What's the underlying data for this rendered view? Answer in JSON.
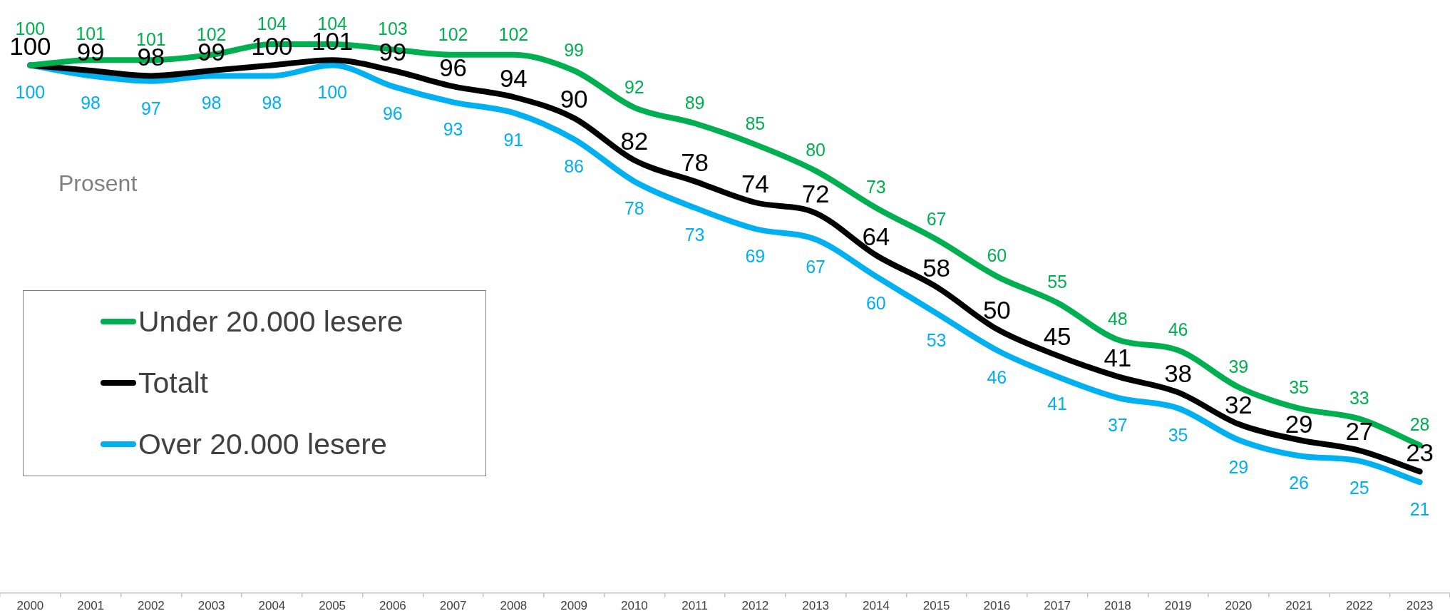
{
  "chart_data": {
    "type": "line",
    "categories": [
      "2000",
      "2001",
      "2002",
      "2003",
      "2004",
      "2005",
      "2006",
      "2007",
      "2008",
      "2009",
      "2010",
      "2011",
      "2012",
      "2013",
      "2014",
      "2015",
      "2016",
      "2017",
      "2018",
      "2019",
      "2020",
      "2021",
      "2022",
      "2023"
    ],
    "series": [
      {
        "name": "Under 20.000 lesere",
        "color": "#00b050",
        "values": [
          100,
          101,
          101,
          102,
          104,
          104,
          103,
          102,
          102,
          99,
          92,
          89,
          85,
          80,
          73,
          67,
          60,
          55,
          48,
          46,
          39,
          35,
          33,
          28
        ]
      },
      {
        "name": "Totalt",
        "color": "#000000",
        "values": [
          100,
          99,
          98,
          99,
          100,
          101,
          99,
          96,
          94,
          90,
          82,
          78,
          74,
          72,
          64,
          58,
          50,
          45,
          41,
          38,
          32,
          29,
          27,
          23
        ]
      },
      {
        "name": "Over 20.000 lesere",
        "color": "#00b0f0",
        "values": [
          100,
          98,
          97,
          98,
          98,
          100,
          96,
          93,
          91,
          86,
          78,
          73,
          69,
          67,
          60,
          53,
          46,
          41,
          37,
          35,
          29,
          26,
          25,
          21
        ]
      }
    ],
    "data_labels": true,
    "legend": "left",
    "marker": "none",
    "annotations": [
      "Prosent"
    ]
  }
}
